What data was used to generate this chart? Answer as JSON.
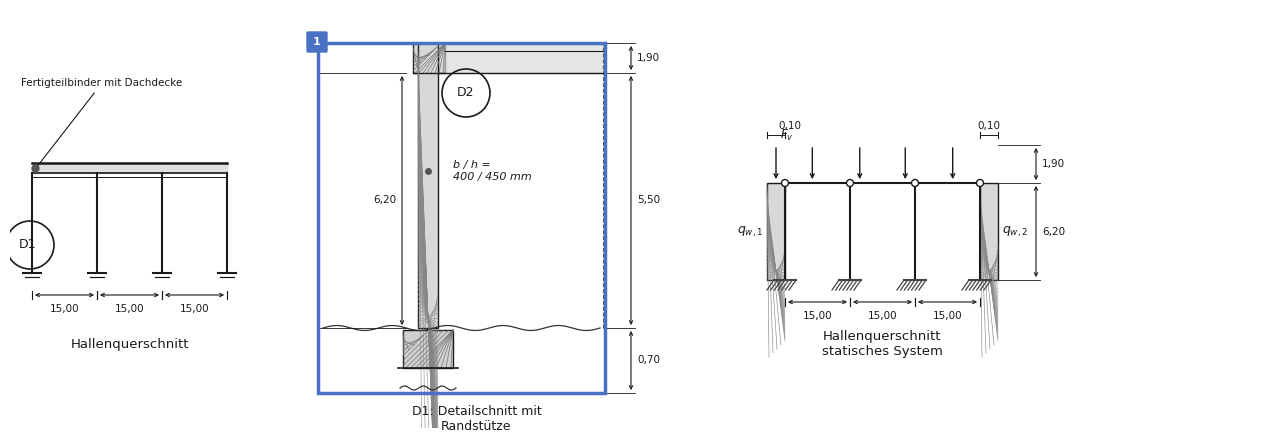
{
  "bg_color": "#ffffff",
  "line_color": "#1a1a1a",
  "blue_color": "#4a72c4",
  "title1": "Hallenquerschnitt",
  "title2": "D1: Detailschnitt mit\nRandstütze",
  "title3": "Hallenquerschnitt\nstatisches System",
  "label_D1": "D1",
  "label_D2": "D2",
  "dim_1500": "15,00",
  "dim_620": "6,20",
  "dim_190": "1,90",
  "dim_550": "5,50",
  "dim_070": "0,70",
  "dim_010": "0,10",
  "bh_label": "b / h =\n400 / 450 mm",
  "anno_fertig": "Fertigteilbinder mit Dachdecke"
}
